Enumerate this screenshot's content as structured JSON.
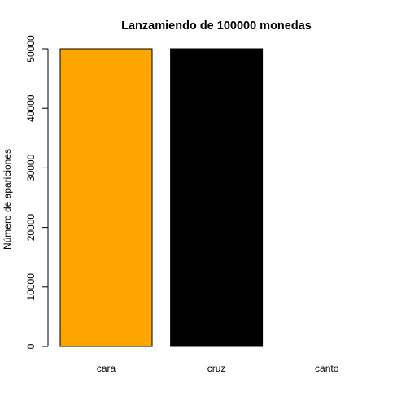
{
  "chart_data": {
    "type": "bar",
    "title": "Lanzamiendo de 100000 monedas",
    "xlabel": "",
    "ylabel": "Número de apariciones",
    "categories": [
      "cara",
      "cruz",
      "canto"
    ],
    "values": [
      50000,
      50000,
      0
    ],
    "colors": [
      "#FFA500",
      "#000000",
      "#FFFFFF"
    ],
    "ylim": [
      0,
      50000
    ],
    "yticks": [
      0,
      10000,
      20000,
      30000,
      40000,
      50000
    ],
    "grid": false,
    "legend": "none"
  }
}
